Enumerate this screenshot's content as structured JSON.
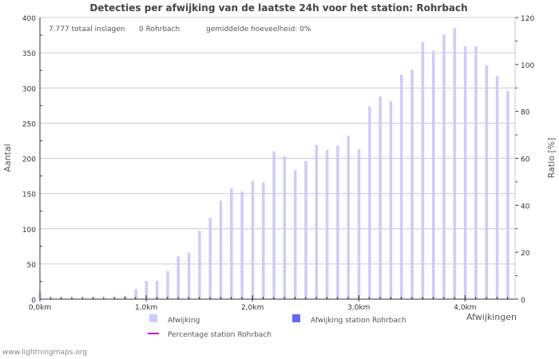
{
  "chart_data": {
    "type": "bar",
    "title": "Detecties per afwijking van de laatste 24h voor het station: Rohrbach",
    "stats": {
      "total": "7.777 totaal inslagen",
      "station": "0 Rohrbach",
      "avg": "gemiddelde hoeveelheid: 0%"
    },
    "xlabel": "Afwijkingen",
    "ylabel": "Aantal",
    "y2label": "Ratio [%]",
    "ylim": [
      0,
      400
    ],
    "y2lim": [
      0,
      120
    ],
    "yticks": [
      "0",
      "50",
      "100",
      "150",
      "200",
      "250",
      "300",
      "350",
      "400"
    ],
    "y2ticks": [
      "0",
      "20",
      "40",
      "60",
      "80",
      "100",
      "120"
    ],
    "xticks": [
      "0,0km",
      "1,0km",
      "2,0km",
      "3,0km",
      "4,0km"
    ],
    "x_step_km": 0.1,
    "series": [
      {
        "name": "Afwijking",
        "color": "#ccccff",
        "values": [
          10,
          1,
          1,
          1,
          1,
          2,
          1,
          2,
          5,
          14,
          26,
          26,
          40,
          61,
          66,
          97,
          116,
          140,
          157,
          153,
          168,
          166,
          210,
          203,
          183,
          196,
          219,
          212,
          218,
          232,
          213,
          274,
          288,
          281,
          319,
          326,
          365,
          353,
          376,
          385,
          359,
          359,
          332,
          317,
          296
        ]
      },
      {
        "name": "Afwijking station Rohrbach",
        "color": "#6666ff",
        "values": []
      },
      {
        "name": "Percentage station Rohrbach",
        "color": "#cc00cc",
        "values": []
      }
    ],
    "grid": true,
    "legend": "bottom"
  },
  "footer": "www.lightningmaps.org"
}
